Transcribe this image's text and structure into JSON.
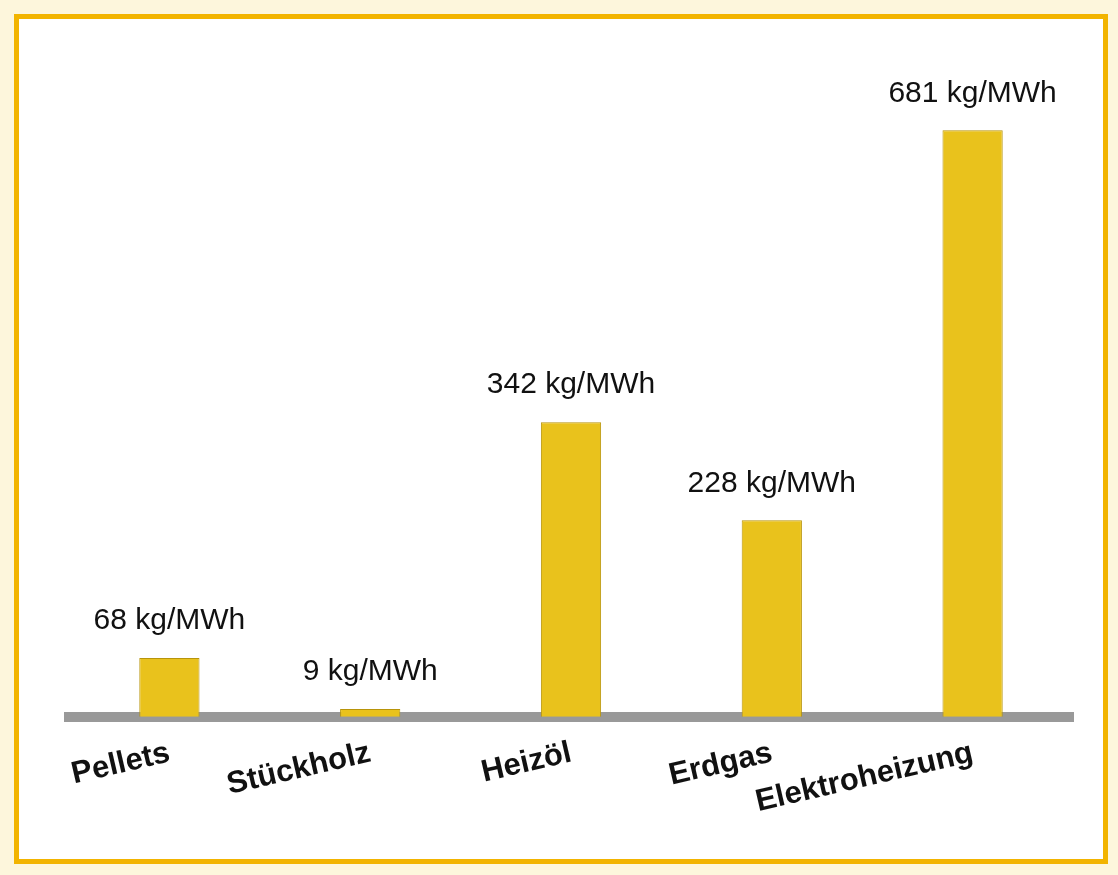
{
  "chart_data": {
    "type": "bar",
    "categories": [
      "Pellets",
      "Stückholz",
      "Heizöl",
      "Erdgas",
      "Elektroheizung"
    ],
    "values": [
      68,
      9,
      342,
      228,
      681
    ],
    "value_labels": [
      "68 kg/MWh",
      "9 kg/MWh",
      "342 kg/MWh",
      "228 kg/MWh",
      "681 kg/MWh"
    ],
    "color": "#e9c21c",
    "grid": false,
    "legend": false
  }
}
